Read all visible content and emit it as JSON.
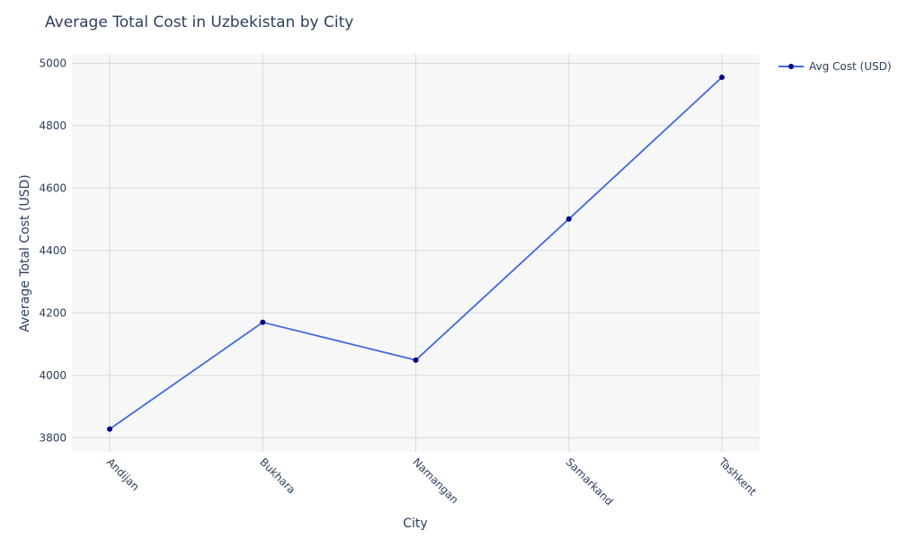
{
  "chart_data": {
    "type": "line",
    "title": "Average Total Cost in Uzbekistan by City",
    "xlabel": "City",
    "ylabel": "Average Total Cost (USD)",
    "categories": [
      "Andijan",
      "Bukhara",
      "Namangan",
      "Samarkand",
      "Tashkent"
    ],
    "series": [
      {
        "name": "Avg Cost (USD)",
        "values": [
          3828,
          4170,
          4049,
          4501,
          4955
        ]
      }
    ],
    "ylim": [
      3755,
      5030
    ],
    "yticks": [
      3800,
      4000,
      4200,
      4400,
      4600,
      4800,
      5000
    ],
    "grid": true,
    "legend_position": "top-right",
    "colors": {
      "line": "#4169e1",
      "marker": "#00008b",
      "plot_bg": "#f7f7f7",
      "grid": "#d9d9d9",
      "text": "#2a3f5f"
    }
  }
}
